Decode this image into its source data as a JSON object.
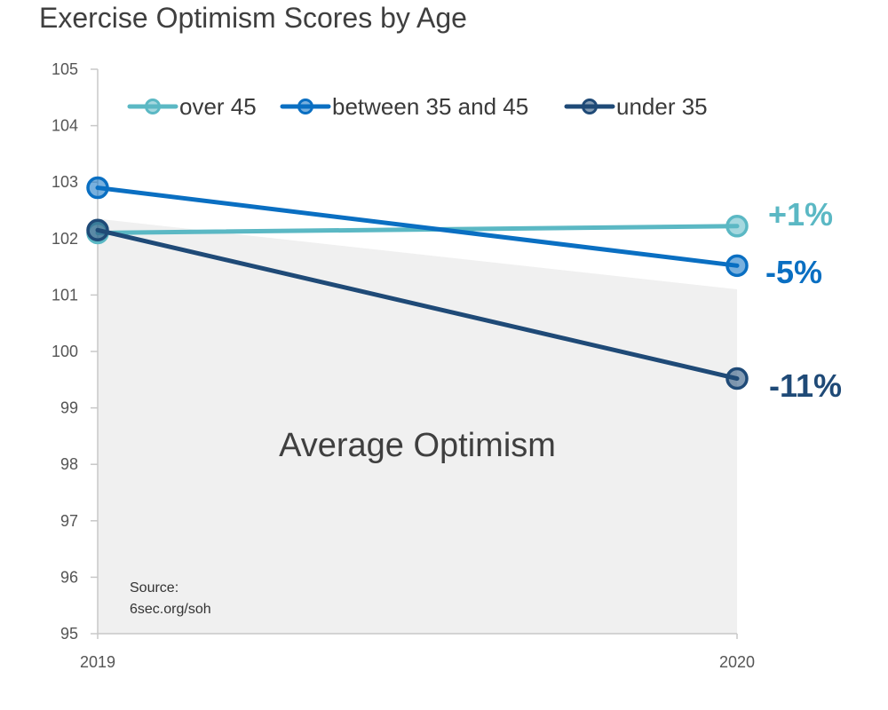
{
  "chart_data": {
    "type": "line",
    "title": "Exercise Optimism Scores by Age",
    "x": [
      "2019",
      "2020"
    ],
    "ylim": [
      95,
      105
    ],
    "yticks": [
      "95",
      "96",
      "97",
      "98",
      "99",
      "100",
      "101",
      "102",
      "103",
      "104",
      "105"
    ],
    "grid": false,
    "legend_position": "top",
    "series": [
      {
        "name": "over 45",
        "values": [
          102.1,
          102.22
        ],
        "color": "#5bb8c4",
        "change_label": "+1%"
      },
      {
        "name": "between 35 and 45",
        "values": [
          102.9,
          101.52
        ],
        "color": "#0a6fc2",
        "change_label": "-5%"
      },
      {
        "name": "under 35",
        "values": [
          102.15,
          99.52
        ],
        "color": "#1f4a77",
        "change_label": "-11%"
      }
    ],
    "area": {
      "name": "Average Optimism",
      "values": [
        102.35,
        101.1
      ],
      "color": "#f0f0f0"
    },
    "annotations": {
      "source_line1": "Source:",
      "source_line2": "6sec.org/soh"
    }
  }
}
